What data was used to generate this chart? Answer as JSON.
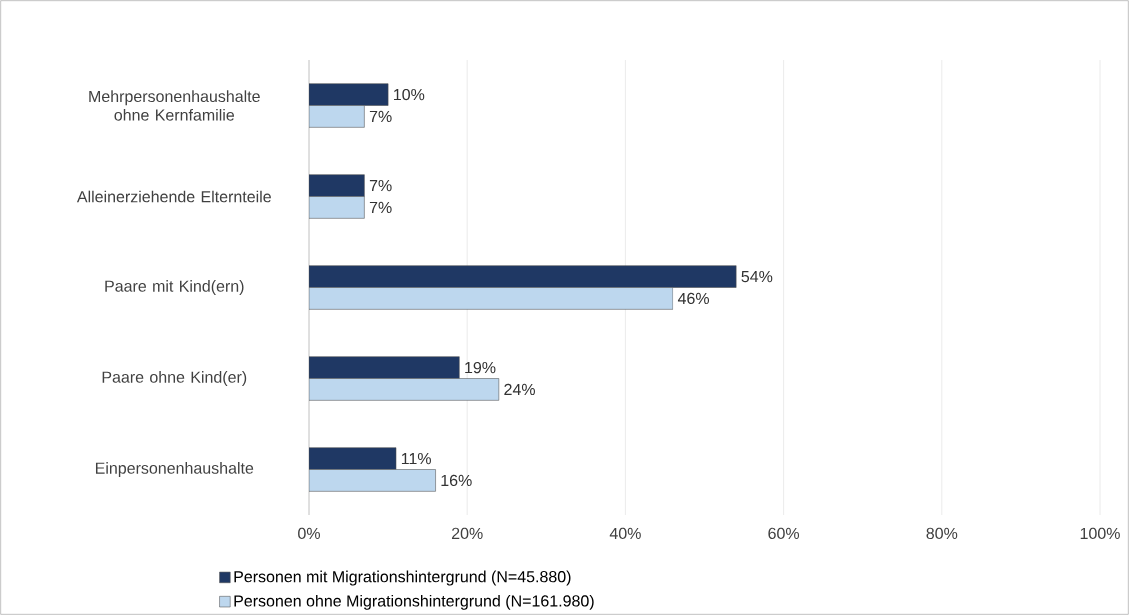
{
  "chart_data": {
    "type": "bar",
    "orientation": "horizontal",
    "categories": [
      "Mehrpersonenhaushalte ohne Kernfamilie",
      "Alleinerziehende Elternteile",
      "Paare mit Kind(ern)",
      "Paare ohne Kind(er)",
      "Einpersonenhaushalte"
    ],
    "series": [
      {
        "name": "Personen mit Migrationshintergrund (N=45.880)",
        "color": "#1f3864",
        "values": [
          10,
          7,
          54,
          19,
          11
        ],
        "value_labels": [
          "10%",
          "7%",
          "54%",
          "19%",
          "11%"
        ]
      },
      {
        "name": "Personen ohne Migrationshintergrund (N=161.980)",
        "color": "#bdd7ee",
        "values": [
          7,
          7,
          46,
          24,
          16
        ],
        "value_labels": [
          "7%",
          "7%",
          "46%",
          "24%",
          "16%"
        ]
      }
    ],
    "xlim": [
      0,
      100
    ],
    "xticks": [
      {
        "value": 0,
        "label": "0%"
      },
      {
        "value": 20,
        "label": "20%"
      },
      {
        "value": 40,
        "label": "40%"
      },
      {
        "value": 60,
        "label": "60%"
      },
      {
        "value": 80,
        "label": "80%"
      },
      {
        "value": 100,
        "label": "100%"
      }
    ],
    "grid": "x",
    "legend": "bottom"
  }
}
